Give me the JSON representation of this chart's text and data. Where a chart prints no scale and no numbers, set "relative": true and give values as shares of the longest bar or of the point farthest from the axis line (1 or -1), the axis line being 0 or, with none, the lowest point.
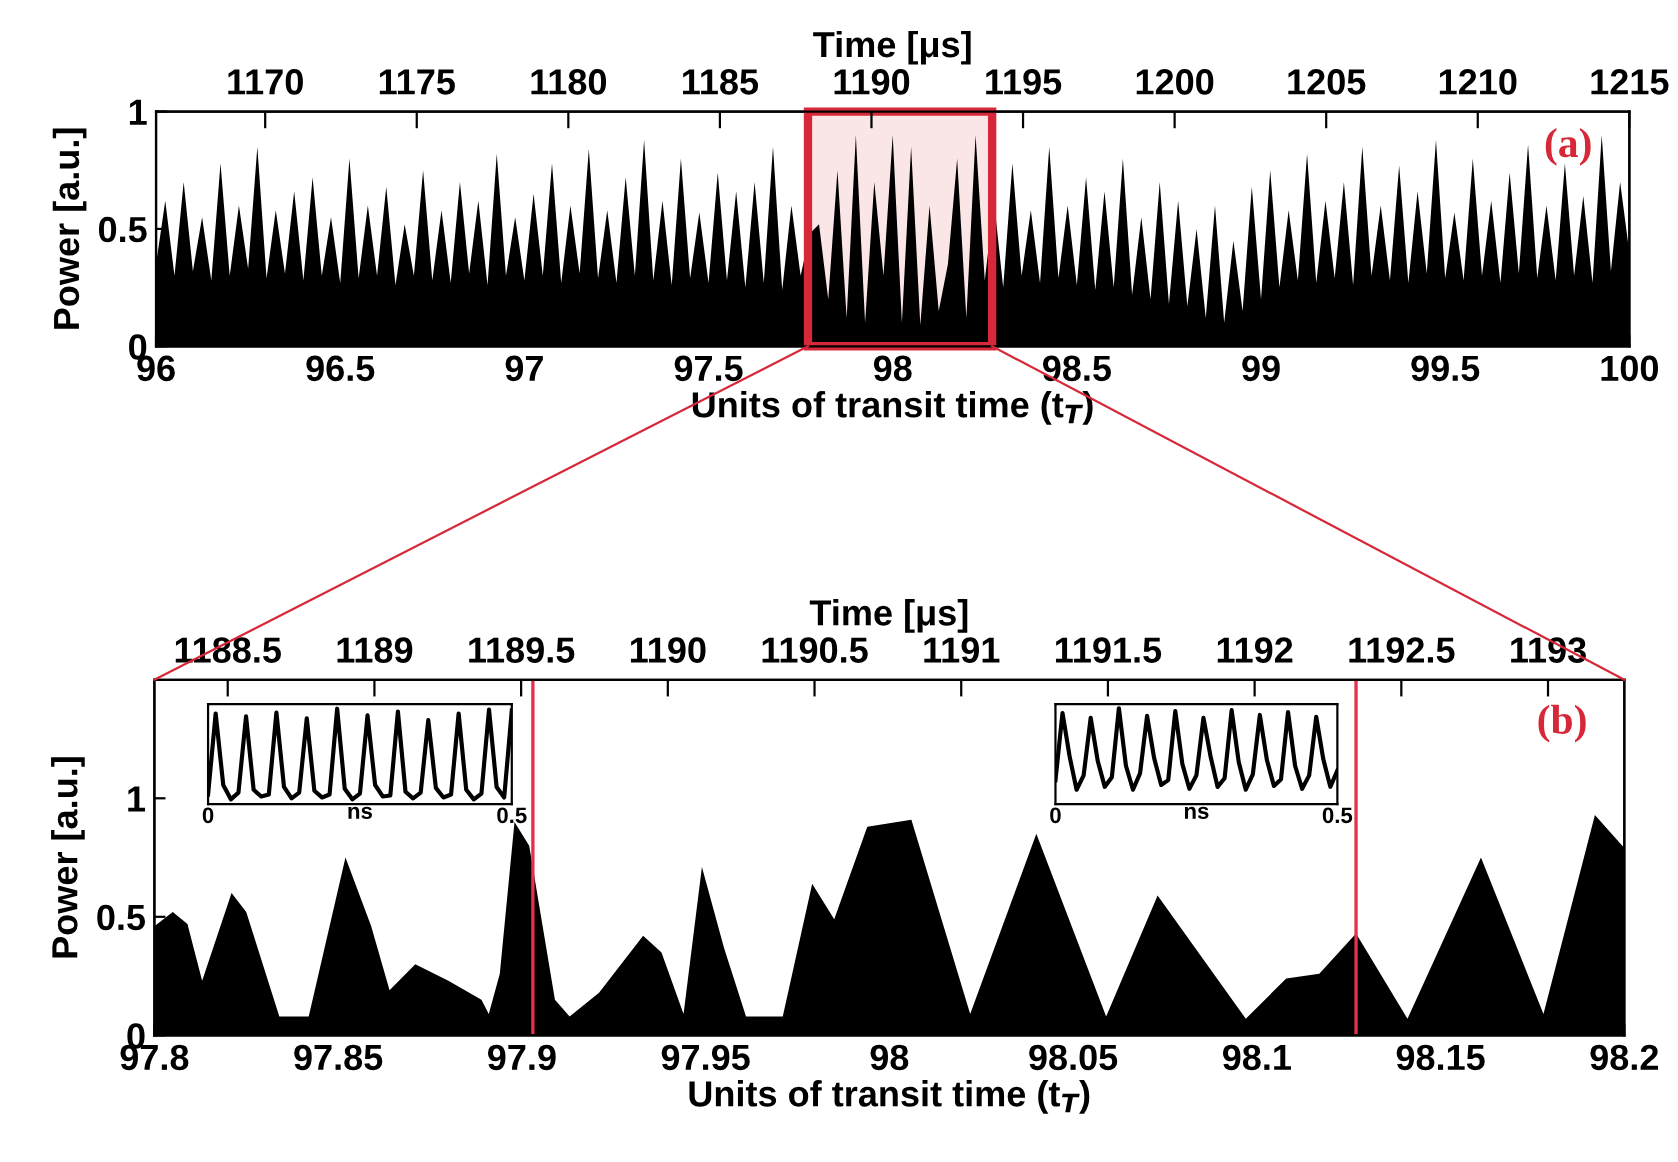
{
  "chart_data": [
    {
      "type": "area",
      "xlabel": "Units of transit time (t$_{T}$)",
      "ylabel": "Power [a.u.]",
      "x2label": "Time [μs]",
      "xlim": [
        96,
        100
      ],
      "xticks": [
        96,
        96.5,
        97,
        97.5,
        98,
        98.5,
        99,
        99.5,
        100
      ],
      "ylim": [
        0,
        1
      ],
      "yticks": [
        0,
        0.5,
        1
      ],
      "x2lim": [
        1166.4,
        1215
      ],
      "x2ticks": [
        1170,
        1175,
        1180,
        1185,
        1190,
        1195,
        1200,
        1205,
        1210,
        1215
      ],
      "annotations": [
        "(a)"
      ],
      "bands": [
        {
          "axis": "x",
          "from": 97.77,
          "to": 98.27,
          "color": "#d62839"
        }
      ],
      "x": [
        96.0,
        96.025,
        96.05,
        96.075,
        96.1,
        96.125,
        96.15,
        96.175,
        96.2,
        96.225,
        96.25,
        96.275,
        96.3,
        96.325,
        96.35,
        96.375,
        96.4,
        96.425,
        96.45,
        96.475,
        96.5,
        96.525,
        96.55,
        96.575,
        96.6,
        96.625,
        96.65,
        96.675,
        96.7,
        96.725,
        96.75,
        96.775,
        96.8,
        96.825,
        96.85,
        96.875,
        96.9,
        96.925,
        96.95,
        96.975,
        97.0,
        97.025,
        97.05,
        97.075,
        97.1,
        97.125,
        97.15,
        97.175,
        97.2,
        97.225,
        97.25,
        97.275,
        97.3,
        97.325,
        97.35,
        97.375,
        97.4,
        97.425,
        97.45,
        97.475,
        97.5,
        97.525,
        97.55,
        97.575,
        97.6,
        97.625,
        97.65,
        97.675,
        97.7,
        97.725,
        97.75,
        97.775,
        97.8,
        97.825,
        97.85,
        97.875,
        97.9,
        97.925,
        97.95,
        97.975,
        98.0,
        98.025,
        98.05,
        98.075,
        98.1,
        98.125,
        98.15,
        98.175,
        98.2,
        98.225,
        98.25,
        98.275,
        98.3,
        98.325,
        98.35,
        98.375,
        98.4,
        98.425,
        98.45,
        98.475,
        98.5,
        98.525,
        98.55,
        98.575,
        98.6,
        98.625,
        98.65,
        98.675,
        98.7,
        98.725,
        98.75,
        98.775,
        98.8,
        98.825,
        98.85,
        98.875,
        98.9,
        98.925,
        98.95,
        98.975,
        99.0,
        99.025,
        99.05,
        99.075,
        99.1,
        99.125,
        99.15,
        99.175,
        99.2,
        99.225,
        99.25,
        99.275,
        99.3,
        99.325,
        99.35,
        99.375,
        99.4,
        99.425,
        99.45,
        99.475,
        99.5,
        99.525,
        99.55,
        99.575,
        99.6,
        99.625,
        99.65,
        99.675,
        99.7,
        99.725,
        99.75,
        99.775,
        99.8,
        99.825,
        99.85,
        99.875,
        99.9,
        99.925,
        99.95,
        99.975,
        100.0
      ],
      "series": [
        {
          "color": "#000000",
          "values": [
            0.35,
            0.62,
            0.3,
            0.7,
            0.32,
            0.55,
            0.28,
            0.78,
            0.3,
            0.6,
            0.33,
            0.85,
            0.29,
            0.58,
            0.31,
            0.66,
            0.28,
            0.72,
            0.3,
            0.55,
            0.27,
            0.8,
            0.29,
            0.6,
            0.3,
            0.68,
            0.26,
            0.52,
            0.3,
            0.75,
            0.28,
            0.58,
            0.27,
            0.7,
            0.31,
            0.62,
            0.26,
            0.82,
            0.3,
            0.55,
            0.28,
            0.65,
            0.3,
            0.78,
            0.27,
            0.6,
            0.31,
            0.84,
            0.29,
            0.58,
            0.27,
            0.72,
            0.3,
            0.88,
            0.28,
            0.62,
            0.26,
            0.8,
            0.29,
            0.57,
            0.27,
            0.74,
            0.28,
            0.66,
            0.25,
            0.7,
            0.27,
            0.85,
            0.24,
            0.6,
            0.3,
            0.48,
            0.52,
            0.2,
            0.75,
            0.12,
            0.9,
            0.1,
            0.7,
            0.3,
            0.9,
            0.1,
            0.85,
            0.09,
            0.6,
            0.15,
            0.35,
            0.8,
            0.12,
            0.9,
            0.28,
            0.62,
            0.25,
            0.78,
            0.3,
            0.58,
            0.27,
            0.85,
            0.29,
            0.6,
            0.26,
            0.72,
            0.24,
            0.66,
            0.25,
            0.8,
            0.22,
            0.55,
            0.2,
            0.7,
            0.18,
            0.62,
            0.17,
            0.5,
            0.12,
            0.6,
            0.1,
            0.45,
            0.15,
            0.68,
            0.2,
            0.75,
            0.25,
            0.58,
            0.28,
            0.82,
            0.27,
            0.62,
            0.29,
            0.7,
            0.26,
            0.85,
            0.3,
            0.6,
            0.28,
            0.77,
            0.27,
            0.66,
            0.31,
            0.88,
            0.29,
            0.57,
            0.28,
            0.8,
            0.3,
            0.62,
            0.27,
            0.74,
            0.31,
            0.86,
            0.29,
            0.6,
            0.28,
            0.78,
            0.3,
            0.64,
            0.27,
            0.9,
            0.32,
            0.7,
            0.4
          ]
        }
      ]
    },
    {
      "type": "area",
      "xlabel": "Units of transit time (t$_{T}$)",
      "ylabel": "Power [a.u.]",
      "x2label": "Time [μs]",
      "xlim": [
        97.8,
        98.2
      ],
      "xticks": [
        97.8,
        97.85,
        97.9,
        97.95,
        98,
        98.05,
        98.1,
        98.15,
        98.2
      ],
      "ylim": [
        0,
        1.5
      ],
      "yticks": [
        0,
        0.5,
        1
      ],
      "x2lim": [
        1188.25,
        1193.26
      ],
      "x2ticks": [
        1188.5,
        1189,
        1189.5,
        1190,
        1190.5,
        1191,
        1191.5,
        1192,
        1192.5,
        1193
      ],
      "annotations": [
        "(b)"
      ],
      "ref_lines": [
        {
          "axis": "x",
          "value": 97.903,
          "color": "#e8304a"
        },
        {
          "axis": "x",
          "value": 98.127,
          "color": "#e8304a"
        }
      ],
      "x": [
        97.8,
        97.805,
        97.809,
        97.813,
        97.821,
        97.825,
        97.834,
        97.842,
        97.852,
        97.859,
        97.864,
        97.871,
        97.88,
        97.889,
        97.891,
        97.894,
        97.898,
        97.902,
        97.909,
        97.913,
        97.921,
        97.933,
        97.938,
        97.944,
        97.949,
        97.955,
        97.961,
        97.971,
        97.979,
        97.985,
        97.994,
        98.006,
        98.022,
        98.04,
        98.059,
        98.073,
        98.097,
        98.108,
        98.117,
        98.127,
        98.141,
        98.161,
        98.178,
        98.192,
        98.2
      ],
      "series": [
        {
          "color": "#000000",
          "values": [
            0.46,
            0.52,
            0.47,
            0.23,
            0.6,
            0.52,
            0.08,
            0.08,
            0.75,
            0.46,
            0.19,
            0.3,
            0.23,
            0.15,
            0.09,
            0.26,
            0.9,
            0.8,
            0.15,
            0.08,
            0.18,
            0.42,
            0.35,
            0.09,
            0.71,
            0.37,
            0.08,
            0.08,
            0.64,
            0.49,
            0.88,
            0.91,
            0.09,
            0.85,
            0.08,
            0.59,
            0.07,
            0.24,
            0.26,
            0.43,
            0.07,
            0.75,
            0.09,
            0.93,
            0.79
          ]
        }
      ]
    },
    {
      "type": "line",
      "relative": true,
      "xlabel": "ns",
      "xlim": [
        0,
        0.5
      ],
      "xticks": [
        0,
        0.5
      ],
      "tick_labels": "x",
      "x": [
        0,
        0.0125,
        0.025,
        0.0375,
        0.05,
        0.0625,
        0.075,
        0.0875,
        0.1,
        0.1125,
        0.125,
        0.1375,
        0.15,
        0.1625,
        0.175,
        0.1875,
        0.2,
        0.2125,
        0.225,
        0.2375,
        0.25,
        0.2625,
        0.275,
        0.2875,
        0.3,
        0.3125,
        0.325,
        0.3375,
        0.35,
        0.3625,
        0.375,
        0.3875,
        0.4,
        0.4125,
        0.425,
        0.4375,
        0.45,
        0.4625,
        0.475,
        0.4875,
        0.5
      ],
      "series": [
        {
          "color": "#000000",
          "values": [
            0.1,
            0.95,
            0.2,
            0.05,
            0.12,
            0.92,
            0.15,
            0.08,
            0.1,
            0.96,
            0.18,
            0.06,
            0.12,
            0.9,
            0.14,
            0.07,
            0.1,
            1.0,
            0.16,
            0.05,
            0.11,
            0.93,
            0.2,
            0.08,
            0.09,
            0.97,
            0.13,
            0.06,
            0.12,
            0.88,
            0.17,
            0.07,
            0.1,
            0.95,
            0.15,
            0.05,
            0.11,
            0.99,
            0.18,
            0.07,
            0.98
          ]
        }
      ]
    },
    {
      "type": "line",
      "relative": true,
      "xlabel": "ns",
      "xlim": [
        0,
        0.5
      ],
      "xticks": [
        0,
        0.5
      ],
      "tick_labels": "x",
      "x": [
        0,
        0.0125,
        0.025,
        0.0375,
        0.05,
        0.0625,
        0.075,
        0.0875,
        0.1,
        0.1125,
        0.125,
        0.1375,
        0.15,
        0.1625,
        0.175,
        0.1875,
        0.2,
        0.2125,
        0.225,
        0.2375,
        0.25,
        0.2625,
        0.275,
        0.2875,
        0.3,
        0.3125,
        0.325,
        0.3375,
        0.35,
        0.3625,
        0.375,
        0.3875,
        0.4,
        0.4125,
        0.425,
        0.4375,
        0.45,
        0.4625,
        0.475,
        0.4875,
        0.5
      ],
      "series": [
        {
          "color": "#000000",
          "values": [
            0.25,
            0.95,
            0.5,
            0.15,
            0.3,
            0.9,
            0.45,
            0.18,
            0.28,
            1.0,
            0.4,
            0.15,
            0.32,
            0.92,
            0.48,
            0.2,
            0.25,
            0.97,
            0.42,
            0.16,
            0.3,
            0.9,
            0.5,
            0.18,
            0.27,
            0.98,
            0.44,
            0.15,
            0.31,
            0.93,
            0.46,
            0.19,
            0.26,
            0.96,
            0.4,
            0.16,
            0.3,
            0.91,
            0.47,
            0.18,
            0.35
          ]
        }
      ]
    }
  ]
}
